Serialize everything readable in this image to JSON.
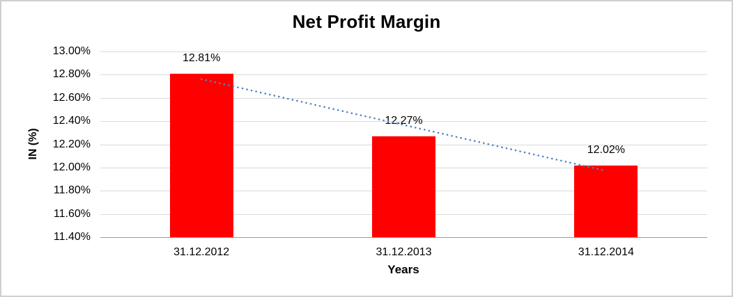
{
  "chart_data": {
    "type": "bar",
    "title": "Net Profit Margin",
    "xlabel": "Years",
    "ylabel": "IN (%)",
    "categories": [
      "31.12.2012",
      "31.12.2013",
      "31.12.2014"
    ],
    "values": [
      12.81,
      12.27,
      12.02
    ],
    "value_labels": [
      "12.81%",
      "12.27%",
      "12.02%"
    ],
    "ylim": [
      11.4,
      13.0
    ],
    "ytick_labels": [
      "13.00%",
      "12.80%",
      "12.60%",
      "12.40%",
      "12.20%",
      "12.00%",
      "11.80%",
      "11.60%",
      "11.40%"
    ],
    "grid": true,
    "legend": "none",
    "bar_color": "#ff0000",
    "gridline_color": "#d9d9d9",
    "axis_line_color": "#9a9a9a",
    "trendline": {
      "type": "linear",
      "style": "dotted",
      "color": "#4d86c6"
    }
  }
}
